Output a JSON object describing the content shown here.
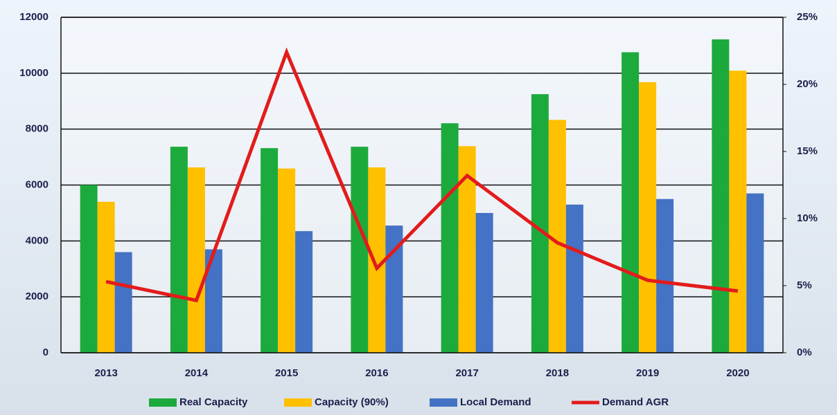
{
  "chart_data": {
    "type": "bar",
    "categories": [
      "2013",
      "2014",
      "2015",
      "2016",
      "2017",
      "2018",
      "2019",
      "2020"
    ],
    "series": [
      {
        "name": "Real Capacity",
        "color": "#1daa3c",
        "values": [
          6000,
          7370,
          7320,
          7370,
          8210,
          9250,
          10750,
          11210
        ]
      },
      {
        "name": "Capacity (90%)",
        "color": "#ffc000",
        "values": [
          5400,
          6630,
          6590,
          6630,
          7390,
          8330,
          9680,
          10090
        ]
      },
      {
        "name": "Local Demand",
        "color": "#4472c4",
        "values": [
          3600,
          3700,
          4350,
          4550,
          5000,
          5300,
          5500,
          5700
        ]
      },
      {
        "name": "Demand AGR",
        "color": "#e31b1b",
        "type": "line",
        "axis": "y2",
        "values": [
          5.3,
          3.9,
          22.4,
          6.3,
          13.2,
          8.2,
          5.4,
          4.6
        ]
      }
    ],
    "ylim": [
      0,
      12000
    ],
    "yticks": [
      0,
      2000,
      4000,
      6000,
      8000,
      10000,
      12000
    ],
    "y2lim": [
      0,
      25
    ],
    "y2ticks": [
      {
        "value": 0,
        "label": "0%"
      },
      {
        "value": 5,
        "label": "5%"
      },
      {
        "value": 10,
        "label": "10%"
      },
      {
        "value": 15,
        "label": "15%"
      },
      {
        "value": 20,
        "label": "20%"
      },
      {
        "value": 25,
        "label": "25%"
      }
    ],
    "grid": true,
    "legend": "bottom"
  }
}
